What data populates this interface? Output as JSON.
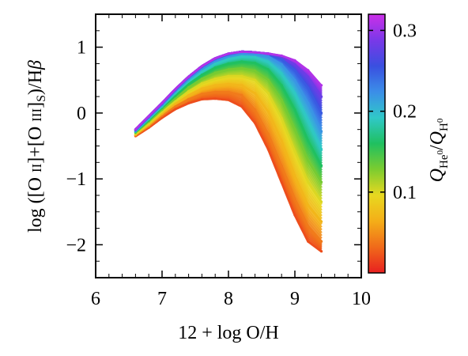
{
  "chart_data": {
    "type": "scatter",
    "title": "",
    "xlabel": "12 + log O/H",
    "ylabel": "log ([O II]+[O III]S)/Hβ",
    "xlim": [
      6,
      10
    ],
    "ylim": [
      -2.5,
      1.5
    ],
    "x_ticks": [
      6,
      7,
      8,
      9,
      10
    ],
    "x_tick_labels": [
      "6",
      "7",
      "8",
      "9",
      "10"
    ],
    "y_ticks": [
      -2,
      -1,
      0,
      1
    ],
    "y_tick_labels": [
      "−2",
      "−1",
      "0",
      "1"
    ],
    "grid": false,
    "colorbar": {
      "label": "Q_He0/Q_H0",
      "range": [
        0.0,
        0.32
      ],
      "ticks": [
        0.1,
        0.2,
        0.3
      ],
      "tick_labels": [
        "0.1",
        "0.2",
        "0.3"
      ],
      "colors": [
        "#e82020",
        "#f06a1a",
        "#f4ae18",
        "#e8d820",
        "#7ccc30",
        "#20c060",
        "#30c8c8",
        "#3b8ee8",
        "#3a4fe0",
        "#7a38e8",
        "#cc30e8"
      ]
    },
    "series": [
      {
        "q": 0.02,
        "points": [
          [
            6.6,
            -0.35
          ],
          [
            6.8,
            -0.22
          ],
          [
            7.0,
            -0.07
          ],
          [
            7.2,
            0.06
          ],
          [
            7.4,
            0.15
          ],
          [
            7.6,
            0.21
          ],
          [
            7.8,
            0.22
          ],
          [
            8.0,
            0.2
          ],
          [
            8.2,
            0.1
          ],
          [
            8.4,
            -0.15
          ],
          [
            8.6,
            -0.55
          ],
          [
            8.8,
            -1.05
          ],
          [
            9.0,
            -1.55
          ],
          [
            9.2,
            -1.95
          ],
          [
            9.4,
            -2.1
          ]
        ]
      },
      {
        "q": 0.04,
        "points": [
          [
            6.6,
            -0.34
          ],
          [
            6.8,
            -0.2
          ],
          [
            7.0,
            -0.04
          ],
          [
            7.2,
            0.1
          ],
          [
            7.4,
            0.21
          ],
          [
            7.6,
            0.29
          ],
          [
            7.8,
            0.32
          ],
          [
            8.0,
            0.32
          ],
          [
            8.2,
            0.27
          ],
          [
            8.4,
            0.05
          ],
          [
            8.6,
            -0.32
          ],
          [
            8.8,
            -0.8
          ],
          [
            9.0,
            -1.3
          ],
          [
            9.2,
            -1.72
          ],
          [
            9.4,
            -1.95
          ]
        ]
      },
      {
        "q": 0.07,
        "points": [
          [
            6.6,
            -0.33
          ],
          [
            6.8,
            -0.18
          ],
          [
            7.0,
            -0.01
          ],
          [
            7.2,
            0.14
          ],
          [
            7.4,
            0.27
          ],
          [
            7.6,
            0.37
          ],
          [
            7.8,
            0.42
          ],
          [
            8.0,
            0.44
          ],
          [
            8.2,
            0.42
          ],
          [
            8.4,
            0.3
          ],
          [
            8.6,
            0.02
          ],
          [
            8.8,
            -0.42
          ],
          [
            9.0,
            -0.95
          ],
          [
            9.2,
            -1.4
          ],
          [
            9.4,
            -1.65
          ]
        ]
      },
      {
        "q": 0.1,
        "points": [
          [
            6.6,
            -0.32
          ],
          [
            6.8,
            -0.16
          ],
          [
            7.0,
            0.02
          ],
          [
            7.2,
            0.18
          ],
          [
            7.4,
            0.33
          ],
          [
            7.6,
            0.45
          ],
          [
            7.8,
            0.52
          ],
          [
            8.0,
            0.56
          ],
          [
            8.2,
            0.56
          ],
          [
            8.4,
            0.5
          ],
          [
            8.6,
            0.3
          ],
          [
            8.8,
            -0.08
          ],
          [
            9.0,
            -0.58
          ],
          [
            9.2,
            -1.05
          ],
          [
            9.4,
            -1.35
          ]
        ]
      },
      {
        "q": 0.13,
        "points": [
          [
            6.6,
            -0.3
          ],
          [
            6.8,
            -0.13
          ],
          [
            7.0,
            0.05
          ],
          [
            7.2,
            0.22
          ],
          [
            7.4,
            0.39
          ],
          [
            7.6,
            0.52
          ],
          [
            7.8,
            0.61
          ],
          [
            8.0,
            0.66
          ],
          [
            8.2,
            0.68
          ],
          [
            8.4,
            0.64
          ],
          [
            8.6,
            0.5
          ],
          [
            8.8,
            0.2
          ],
          [
            9.0,
            -0.25
          ],
          [
            9.2,
            -0.72
          ],
          [
            9.4,
            -1.05
          ]
        ]
      },
      {
        "q": 0.16,
        "points": [
          [
            6.6,
            -0.29
          ],
          [
            6.8,
            -0.11
          ],
          [
            7.0,
            0.08
          ],
          [
            7.2,
            0.26
          ],
          [
            7.4,
            0.44
          ],
          [
            7.6,
            0.58
          ],
          [
            7.8,
            0.69
          ],
          [
            8.0,
            0.75
          ],
          [
            8.2,
            0.78
          ],
          [
            8.4,
            0.76
          ],
          [
            8.6,
            0.66
          ],
          [
            8.8,
            0.42
          ],
          [
            9.0,
            0.05
          ],
          [
            9.2,
            -0.42
          ],
          [
            9.4,
            -0.8
          ]
        ]
      },
      {
        "q": 0.19,
        "points": [
          [
            6.6,
            -0.28
          ],
          [
            6.8,
            -0.09
          ],
          [
            7.0,
            0.1
          ],
          [
            7.2,
            0.3
          ],
          [
            7.4,
            0.48
          ],
          [
            7.6,
            0.63
          ],
          [
            7.8,
            0.75
          ],
          [
            8.0,
            0.82
          ],
          [
            8.2,
            0.86
          ],
          [
            8.4,
            0.85
          ],
          [
            8.6,
            0.78
          ],
          [
            8.8,
            0.6
          ],
          [
            9.0,
            0.3
          ],
          [
            9.2,
            -0.12
          ],
          [
            9.4,
            -0.55
          ]
        ]
      },
      {
        "q": 0.22,
        "points": [
          [
            6.6,
            -0.27
          ],
          [
            6.8,
            -0.07
          ],
          [
            7.0,
            0.12
          ],
          [
            7.2,
            0.33
          ],
          [
            7.4,
            0.51
          ],
          [
            7.6,
            0.67
          ],
          [
            7.8,
            0.79
          ],
          [
            8.0,
            0.87
          ],
          [
            8.2,
            0.91
          ],
          [
            8.4,
            0.9
          ],
          [
            8.6,
            0.86
          ],
          [
            8.8,
            0.74
          ],
          [
            9.0,
            0.5
          ],
          [
            9.2,
            0.15
          ],
          [
            9.4,
            -0.28
          ]
        ]
      },
      {
        "q": 0.25,
        "points": [
          [
            6.6,
            -0.26
          ],
          [
            6.8,
            -0.06
          ],
          [
            7.0,
            0.14
          ],
          [
            7.2,
            0.35
          ],
          [
            7.4,
            0.54
          ],
          [
            7.6,
            0.7
          ],
          [
            7.8,
            0.82
          ],
          [
            8.0,
            0.89
          ],
          [
            8.2,
            0.93
          ],
          [
            8.4,
            0.92
          ],
          [
            8.6,
            0.9
          ],
          [
            8.8,
            0.82
          ],
          [
            9.0,
            0.65
          ],
          [
            9.2,
            0.38
          ],
          [
            9.4,
            0.0
          ]
        ]
      },
      {
        "q": 0.28,
        "points": [
          [
            6.6,
            -0.25
          ],
          [
            6.8,
            -0.05
          ],
          [
            7.0,
            0.15
          ],
          [
            7.2,
            0.36
          ],
          [
            7.4,
            0.55
          ],
          [
            7.6,
            0.71
          ],
          [
            7.8,
            0.83
          ],
          [
            8.0,
            0.9
          ],
          [
            8.2,
            0.93
          ],
          [
            8.4,
            0.92
          ],
          [
            8.6,
            0.9
          ],
          [
            8.8,
            0.85
          ],
          [
            9.0,
            0.74
          ],
          [
            9.2,
            0.55
          ],
          [
            9.4,
            0.25
          ]
        ]
      },
      {
        "q": 0.31,
        "points": [
          [
            6.6,
            -0.25
          ],
          [
            6.8,
            -0.05
          ],
          [
            7.0,
            0.15
          ],
          [
            7.2,
            0.36
          ],
          [
            7.4,
            0.55
          ],
          [
            7.6,
            0.71
          ],
          [
            7.8,
            0.83
          ],
          [
            8.0,
            0.9
          ],
          [
            8.2,
            0.93
          ],
          [
            8.4,
            0.92
          ],
          [
            8.6,
            0.9
          ],
          [
            8.8,
            0.87
          ],
          [
            9.0,
            0.8
          ],
          [
            9.2,
            0.65
          ],
          [
            9.4,
            0.42
          ]
        ]
      }
    ]
  }
}
